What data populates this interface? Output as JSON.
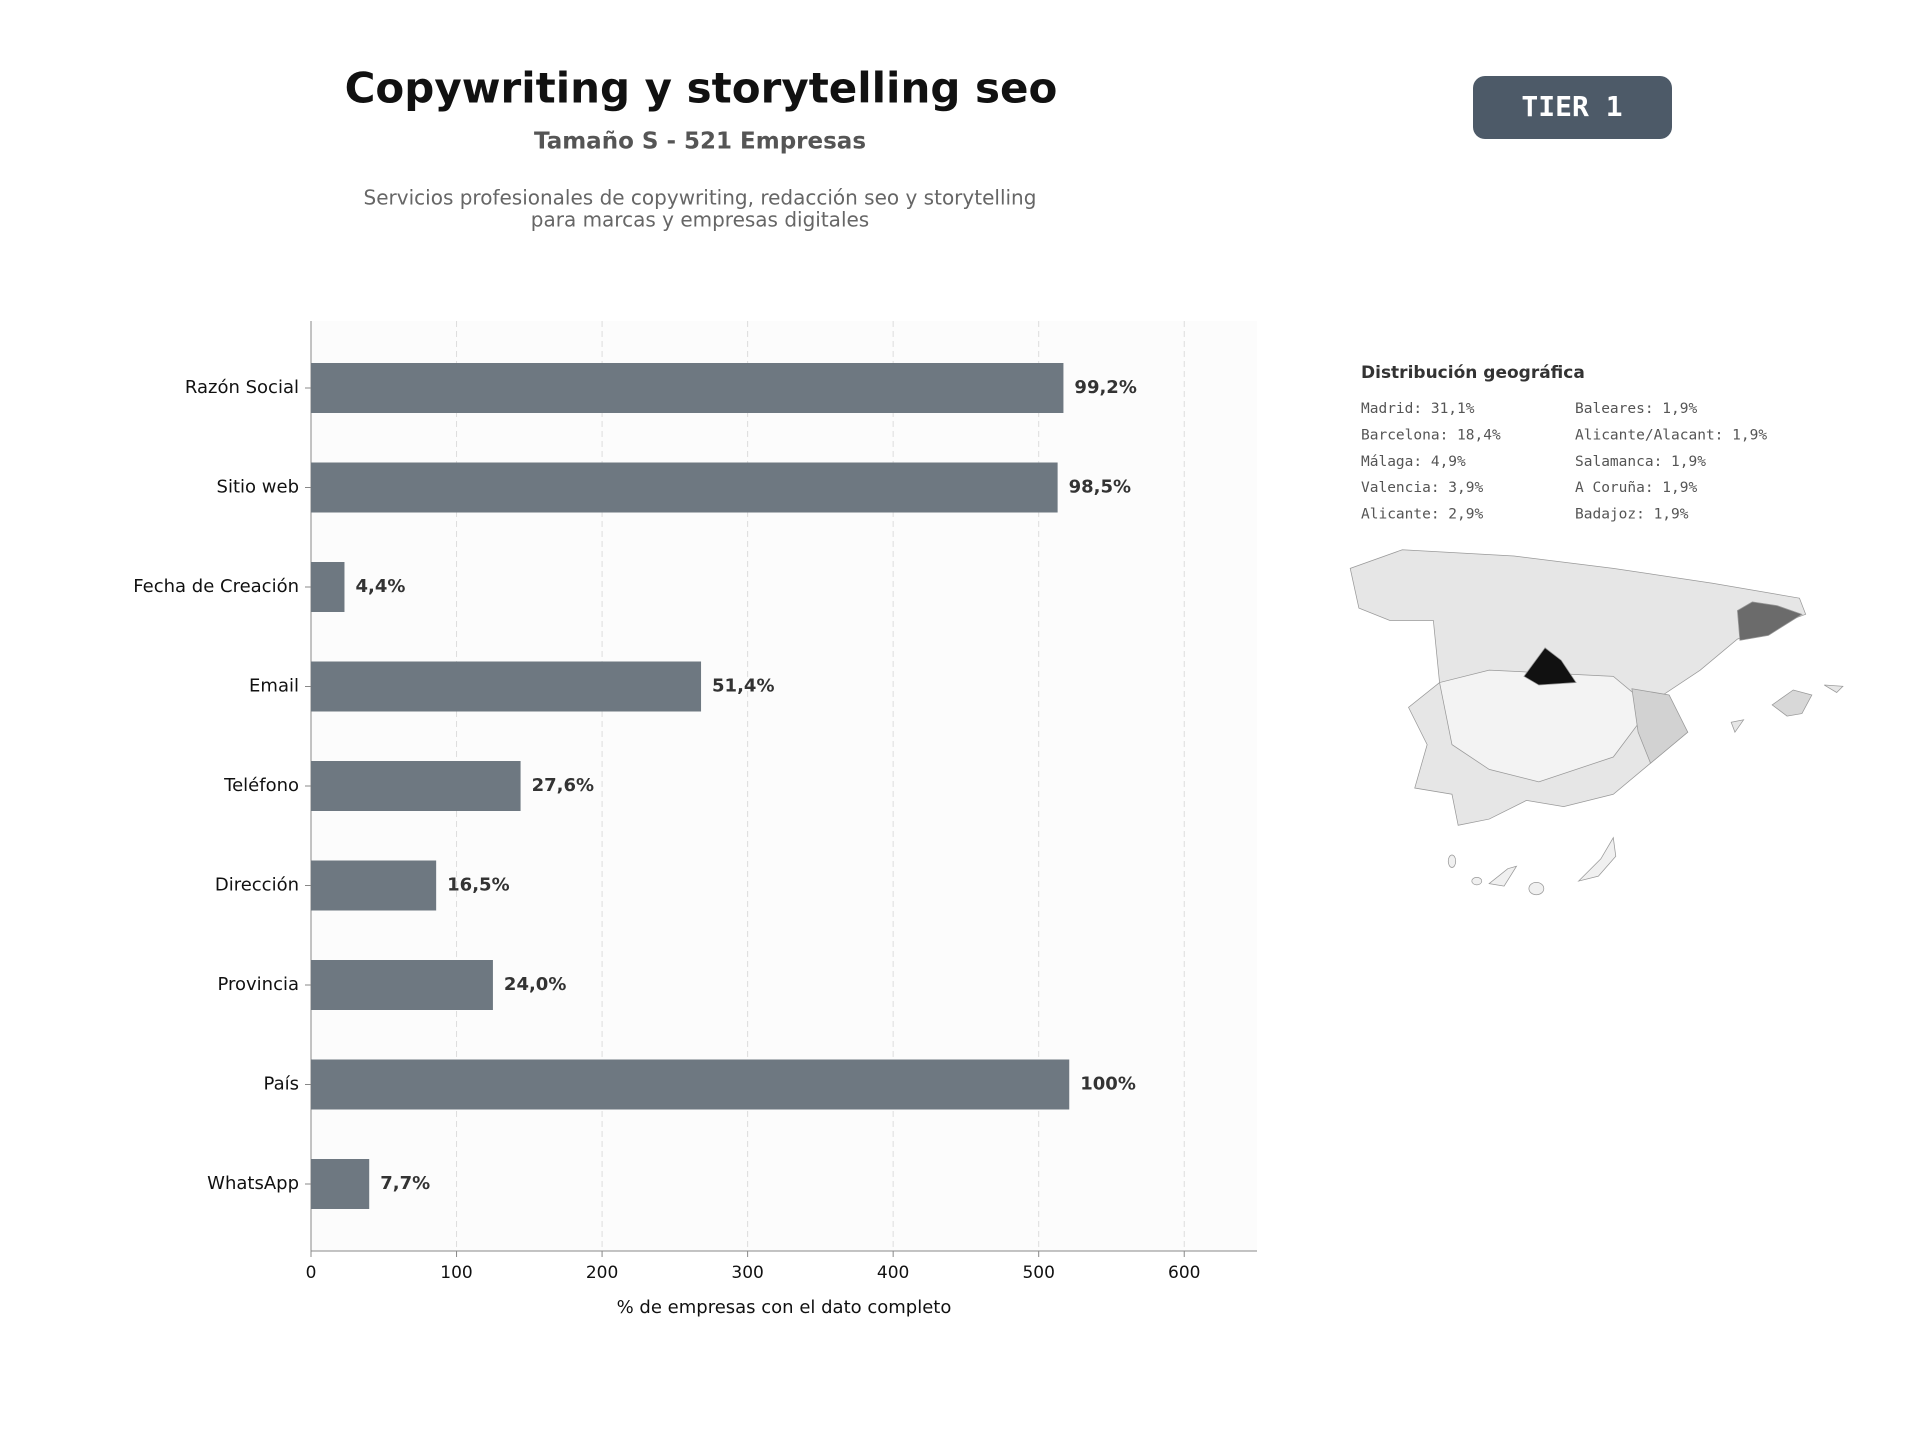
{
  "header": {
    "title": "Copywriting y storytelling seo",
    "subtitle": "Tamaño S - 521 Empresas",
    "description": [
      "Servicios profesionales de copywriting, redacción seo y storytelling",
      "para marcas y empresas digitales"
    ],
    "badge": "TIER 1"
  },
  "chart_data": {
    "type": "barh",
    "categories": [
      "Razón Social",
      "Sitio web",
      "Fecha de Creación",
      "Email",
      "Teléfono",
      "Dirección",
      "Provincia",
      "País",
      "WhatsApp"
    ],
    "values": [
      517,
      513,
      23,
      268,
      144,
      86,
      125,
      521,
      40
    ],
    "bar_labels": [
      "99,2%",
      "98,5%",
      "4,4%",
      "51,4%",
      "27,6%",
      "16,5%",
      "24,0%",
      "100%",
      "7,7%"
    ],
    "color": "#6e7881",
    "xlim": [
      0,
      650
    ],
    "xticks": [
      0,
      100,
      200,
      300,
      400,
      500,
      600
    ],
    "grid": true,
    "xlabel": "% de empresas con el dato completo"
  },
  "geo": {
    "title": "Distribución geográfica",
    "columns": [
      [
        "Madrid: 31,1%",
        "Barcelona: 18,4%",
        "Málaga: 4,9%",
        "Valencia: 3,9%",
        "Alicante: 2,9%"
      ],
      [
        "Baleares: 1,9%",
        "Alicante/Alacant: 1,9%",
        "Salamanca: 1,9%",
        "A Coruña: 1,9%",
        "Badajoz: 1,9%"
      ]
    ]
  }
}
